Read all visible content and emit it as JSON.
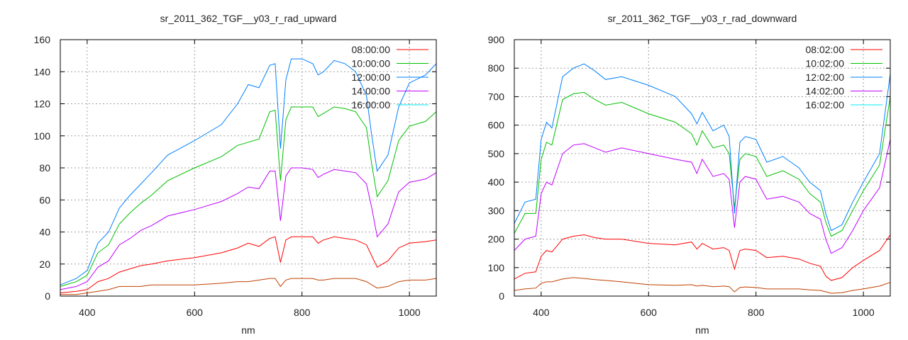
{
  "chart_data": [
    {
      "type": "line",
      "title": "sr_2011_362_TGF__y03_r_rad_upward",
      "xlabel": "nm",
      "ylabel": "",
      "xlim": [
        350,
        1050
      ],
      "ylim": [
        0,
        160
      ],
      "xticks": [
        400,
        600,
        800,
        1000
      ],
      "yticks": [
        0,
        20,
        40,
        60,
        80,
        100,
        120,
        140,
        160
      ],
      "grid": true,
      "legend_position": "top-right",
      "x": [
        350,
        380,
        400,
        420,
        440,
        460,
        480,
        500,
        520,
        550,
        600,
        650,
        680,
        700,
        720,
        740,
        750,
        760,
        770,
        780,
        800,
        820,
        830,
        840,
        860,
        880,
        900,
        920,
        930,
        940,
        960,
        980,
        1000,
        1030,
        1050
      ],
      "series": [
        {
          "name": "08:00:00",
          "color": "#ff0000",
          "legend_color": "#ff0000",
          "values": [
            2,
            3,
            4,
            9,
            11,
            15,
            17,
            19,
            20,
            22,
            24,
            27,
            30,
            33,
            31,
            36,
            37,
            21,
            35,
            37,
            37,
            37,
            33,
            35,
            37,
            36,
            35,
            32,
            25,
            18,
            22,
            30,
            33,
            34,
            35
          ]
        },
        {
          "name": "10:00:00",
          "color": "#00c000",
          "legend_color": "#00c000",
          "values": [
            6,
            9,
            13,
            27,
            32,
            45,
            52,
            58,
            63,
            72,
            80,
            87,
            94,
            96,
            98,
            115,
            116,
            72,
            110,
            118,
            118,
            118,
            112,
            114,
            118,
            117,
            115,
            105,
            82,
            62,
            72,
            97,
            106,
            109,
            115
          ]
        },
        {
          "name": "12:00:00",
          "color": "#0080ff",
          "legend_color": "#0080ff",
          "values": [
            7,
            11,
            16,
            33,
            40,
            55,
            63,
            70,
            77,
            88,
            97,
            107,
            120,
            132,
            130,
            144,
            145,
            92,
            135,
            148,
            148,
            145,
            138,
            140,
            147,
            145,
            140,
            125,
            100,
            78,
            88,
            118,
            133,
            138,
            145
          ]
        },
        {
          "name": "14:00:00",
          "color": "#c000ff",
          "legend_color": "#c000ff",
          "values": [
            4,
            6,
            9,
            18,
            22,
            32,
            36,
            41,
            44,
            50,
            54,
            59,
            64,
            68,
            67,
            78,
            78,
            47,
            75,
            80,
            80,
            79,
            74,
            76,
            79,
            78,
            77,
            70,
            55,
            37,
            45,
            65,
            71,
            73,
            77
          ]
        },
        {
          "name": "16:00:00",
          "color": "#c04000",
          "legend_color": "#00eeee",
          "values": [
            1,
            1,
            2,
            3,
            4,
            6,
            6,
            6,
            7,
            7,
            7,
            8,
            9,
            9,
            10,
            11,
            11,
            6,
            10,
            11,
            11,
            11,
            10,
            10,
            11,
            11,
            11,
            9,
            7,
            5,
            6,
            9,
            10,
            10,
            11
          ]
        }
      ]
    },
    {
      "type": "line",
      "title": "sr_2011_362_TGF__y03_r_rad_downward",
      "xlabel": "nm",
      "ylabel": "",
      "xlim": [
        350,
        1050
      ],
      "ylim": [
        0,
        900
      ],
      "xticks": [
        400,
        600,
        800,
        1000
      ],
      "yticks": [
        0,
        100,
        200,
        300,
        400,
        500,
        600,
        700,
        800,
        900
      ],
      "grid": true,
      "legend_position": "top-right",
      "x": [
        350,
        370,
        390,
        400,
        410,
        420,
        440,
        460,
        480,
        500,
        520,
        550,
        600,
        650,
        680,
        690,
        700,
        720,
        740,
        750,
        760,
        770,
        780,
        800,
        820,
        850,
        880,
        900,
        920,
        930,
        940,
        960,
        980,
        1000,
        1030,
        1050
      ],
      "series": [
        {
          "name": "08:02:00",
          "color": "#ff0000",
          "legend_color": "#ff0000",
          "values": [
            60,
            80,
            85,
            140,
            160,
            155,
            200,
            210,
            215,
            205,
            200,
            200,
            185,
            180,
            190,
            165,
            185,
            165,
            170,
            160,
            95,
            160,
            165,
            160,
            135,
            140,
            130,
            115,
            105,
            70,
            55,
            65,
            100,
            125,
            160,
            215
          ]
        },
        {
          "name": "10:02:00",
          "color": "#00c000",
          "legend_color": "#00c000",
          "values": [
            220,
            290,
            290,
            480,
            540,
            530,
            690,
            710,
            715,
            690,
            670,
            680,
            640,
            610,
            570,
            530,
            580,
            520,
            530,
            500,
            310,
            480,
            500,
            490,
            420,
            440,
            410,
            360,
            330,
            260,
            210,
            230,
            300,
            370,
            460,
            700
          ]
        },
        {
          "name": "12:02:00",
          "color": "#0080ff",
          "legend_color": "#0080ff",
          "values": [
            255,
            330,
            340,
            550,
            610,
            590,
            770,
            800,
            815,
            790,
            760,
            770,
            740,
            700,
            640,
            605,
            645,
            580,
            600,
            560,
            290,
            540,
            560,
            550,
            470,
            490,
            450,
            400,
            370,
            290,
            230,
            250,
            330,
            400,
            500,
            780
          ]
        },
        {
          "name": "14:02:00",
          "color": "#c000ff",
          "legend_color": "#c000ff",
          "values": [
            160,
            200,
            210,
            360,
            400,
            390,
            500,
            530,
            535,
            520,
            505,
            520,
            500,
            480,
            470,
            430,
            480,
            420,
            430,
            410,
            240,
            400,
            420,
            410,
            340,
            350,
            330,
            290,
            270,
            200,
            150,
            170,
            230,
            300,
            380,
            550
          ]
        },
        {
          "name": "16:02:00",
          "color": "#c04000",
          "legend_color": "#00eeee",
          "values": [
            20,
            25,
            28,
            45,
            50,
            50,
            60,
            65,
            62,
            58,
            55,
            50,
            40,
            38,
            40,
            35,
            38,
            33,
            35,
            33,
            15,
            30,
            32,
            30,
            25,
            25,
            25,
            22,
            20,
            15,
            10,
            12,
            20,
            25,
            35,
            48
          ]
        }
      ]
    }
  ]
}
